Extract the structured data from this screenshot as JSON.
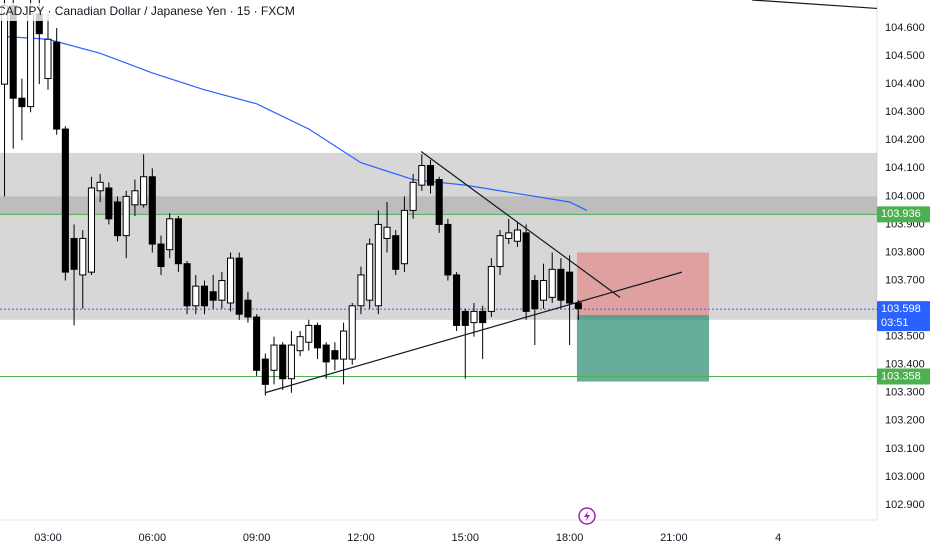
{
  "chart_data": {
    "type": "candlestick",
    "title": "CADJPY · Canadian Dollar / Japanese Yen · 15 · FXCM",
    "x": [
      1.75,
      2,
      2.25,
      2.5,
      2.75,
      3,
      3.25,
      3.5,
      3.75,
      4,
      4.25,
      4.5,
      4.75,
      5,
      5.25,
      5.5,
      5.75,
      6,
      6.25,
      6.5,
      6.75,
      7,
      7.25,
      7.5,
      7.75,
      8,
      8.25,
      8.5,
      8.75,
      9,
      9.25,
      9.5,
      9.75,
      10,
      10.25,
      10.5,
      10.75,
      11,
      11.25,
      11.5,
      11.75,
      12,
      12.25,
      12.5,
      12.75,
      13,
      13.25,
      13.5,
      13.75,
      14,
      14.25,
      14.5,
      14.75,
      15,
      15.25,
      15.5,
      15.75,
      16,
      16.25,
      16.5,
      16.75,
      17,
      17.25,
      17.5,
      17.75,
      18,
      18.25
    ],
    "open": [
      104.4,
      104.68,
      104.35,
      104.32,
      104.65,
      104.42,
      104.55,
      104.24,
      103.85,
      103.72,
      103.73,
      104.02,
      104.03,
      103.98,
      103.86,
      103.97,
      103.97,
      104.07,
      103.83,
      103.81,
      103.92,
      103.76,
      103.61,
      103.68,
      103.66,
      103.63,
      103.62,
      103.78,
      103.63,
      103.57,
      103.42,
      103.38,
      103.47,
      103.35,
      103.45,
      103.48,
      103.54,
      103.47,
      103.45,
      103.42,
      103.42,
      103.61,
      103.63,
      103.61,
      103.85,
      103.86,
      103.76,
      103.95,
      104.04,
      104.11,
      104.06,
      103.9,
      103.72,
      103.59,
      103.55,
      103.59,
      103.59,
      103.75,
      103.85,
      103.84,
      103.87,
      103.7,
      103.63,
      103.64,
      103.74,
      103.73,
      103.62
    ],
    "high": [
      104.7,
      104.7,
      104.42,
      104.7,
      104.7,
      104.65,
      104.6,
      104.25,
      103.9,
      103.88,
      104.07,
      104.08,
      104.05,
      104.0,
      104.02,
      104.06,
      104.15,
      104.1,
      103.86,
      103.94,
      103.93,
      103.77,
      103.72,
      103.7,
      103.72,
      103.73,
      103.8,
      103.8,
      103.66,
      103.58,
      103.44,
      103.5,
      103.48,
      103.52,
      103.52,
      103.56,
      103.55,
      103.48,
      103.48,
      103.55,
      103.62,
      103.75,
      103.85,
      103.95,
      103.98,
      103.88,
      104.0,
      104.08,
      104.15,
      104.13,
      104.07,
      103.92,
      103.73,
      103.6,
      103.62,
      103.61,
      103.78,
      103.88,
      103.92,
      103.91,
      103.9,
      103.72,
      103.76,
      103.8,
      103.78,
      103.79,
      103.63
    ],
    "low": [
      104.0,
      104.17,
      104.2,
      104.3,
      104.4,
      104.38,
      104.22,
      103.7,
      103.54,
      103.6,
      103.72,
      103.98,
      103.9,
      103.84,
      103.78,
      103.93,
      103.96,
      103.8,
      103.72,
      103.78,
      103.73,
      103.58,
      103.58,
      103.58,
      103.6,
      103.6,
      103.59,
      103.56,
      103.55,
      103.36,
      103.29,
      103.33,
      103.31,
      103.3,
      103.43,
      103.45,
      103.42,
      103.35,
      103.38,
      103.33,
      103.4,
      103.58,
      103.6,
      103.58,
      103.8,
      103.72,
      103.73,
      103.92,
      104.02,
      104.01,
      103.87,
      103.7,
      103.52,
      103.35,
      103.5,
      103.42,
      103.57,
      103.72,
      103.83,
      103.82,
      103.56,
      103.47,
      103.6,
      103.62,
      103.6,
      103.47,
      103.56
    ],
    "close": [
      104.68,
      104.35,
      104.32,
      104.65,
      104.58,
      104.56,
      104.24,
      103.73,
      103.74,
      103.85,
      104.03,
      104.05,
      103.92,
      103.86,
      104.0,
      104.02,
      104.07,
      103.83,
      103.75,
      103.92,
      103.76,
      103.61,
      103.68,
      103.61,
      103.63,
      103.7,
      103.78,
      103.58,
      103.57,
      103.38,
      103.33,
      103.47,
      103.35,
      103.47,
      103.5,
      103.54,
      103.46,
      103.41,
      103.42,
      103.52,
      103.61,
      103.72,
      103.83,
      103.9,
      103.89,
      103.74,
      103.95,
      104.05,
      104.11,
      104.04,
      103.9,
      103.72,
      103.54,
      103.54,
      103.59,
      103.55,
      103.75,
      103.86,
      103.87,
      103.88,
      103.59,
      103.6,
      103.7,
      103.74,
      103.63,
      103.62,
      103.6
    ],
    "up_color": "#ffffff",
    "down_color": "#000000",
    "xlim": [
      1.62,
      26.84
    ],
    "ylim": [
      102.85,
      104.7
    ],
    "xticks": [
      {
        "value": 3,
        "label": "03:00"
      },
      {
        "value": 6,
        "label": "06:00"
      },
      {
        "value": 9,
        "label": "09:00"
      },
      {
        "value": 12,
        "label": "12:00"
      },
      {
        "value": 15,
        "label": "15:00"
      },
      {
        "value": 18,
        "label": "18:00"
      },
      {
        "value": 21,
        "label": "21:00"
      },
      {
        "value": 24,
        "label": "4"
      }
    ],
    "yticks": [
      {
        "value": 102.9,
        "label": "102.900"
      },
      {
        "value": 103.0,
        "label": "103.000"
      },
      {
        "value": 103.1,
        "label": "103.100"
      },
      {
        "value": 103.2,
        "label": "103.200"
      },
      {
        "value": 103.3,
        "label": "103.300"
      },
      {
        "value": 103.4,
        "label": "103.400"
      },
      {
        "value": 103.5,
        "label": "103.500"
      },
      {
        "value": 103.6,
        "label": "103.600"
      },
      {
        "value": 103.7,
        "label": "103.700"
      },
      {
        "value": 103.8,
        "label": "103.800"
      },
      {
        "value": 103.9,
        "label": "103.900"
      },
      {
        "value": 104.0,
        "label": "104.000"
      },
      {
        "value": 104.1,
        "label": "104.100"
      },
      {
        "value": 104.2,
        "label": "104.200"
      },
      {
        "value": 104.3,
        "label": "104.300"
      },
      {
        "value": 104.4,
        "label": "104.400"
      },
      {
        "value": 104.5,
        "label": "104.500"
      },
      {
        "value": 104.6,
        "label": "104.600"
      }
    ],
    "ma": {
      "color": "#2962ff",
      "x": [
        1.75,
        3,
        4.5,
        6,
        7.5,
        9,
        10.5,
        12,
        13.5,
        15,
        16.5,
        18,
        18.5
      ],
      "values": [
        104.57,
        104.56,
        104.51,
        104.44,
        104.38,
        104.33,
        104.24,
        104.12,
        104.06,
        104.04,
        104.01,
        103.98,
        103.95
      ]
    },
    "zones": [
      {
        "from": 104.155,
        "to": 103.935,
        "color": "rgba(140,140,140,0.35)"
      },
      {
        "from": 104.0,
        "to": 103.56,
        "color": "rgba(140,140,140,0.35)"
      }
    ],
    "levels": [
      {
        "value": 103.936,
        "label": "103.936",
        "color": "#4caf50",
        "style": "solid"
      },
      {
        "value": 103.598,
        "label": "103.598",
        "color": "#2962ff",
        "style": "dotted"
      },
      {
        "value": 103.358,
        "label": "103.358",
        "color": "#4caf50",
        "style": "solid"
      }
    ],
    "countdown": "03:51",
    "trendlines": [
      {
        "x": [
          9.24,
          18.44
        ],
        "y": [
          103.3,
          103.63
        ]
      },
      {
        "x": [
          13.73,
          19.45
        ],
        "y": [
          104.16,
          103.64
        ]
      },
      {
        "x": [
          18.44,
          21.23
        ],
        "y": [
          103.63,
          103.73
        ]
      },
      {
        "x": [
          23.25,
          26.84
        ],
        "y": [
          104.7,
          104.67
        ]
      }
    ],
    "position": {
      "x": [
        18.21,
        22.01
      ],
      "entry": 103.577,
      "stop": 103.8,
      "target": 103.34,
      "stop_color": "rgba(229,115,115,0.55)",
      "target_color": "rgba(38,138,110,0.7)"
    }
  }
}
